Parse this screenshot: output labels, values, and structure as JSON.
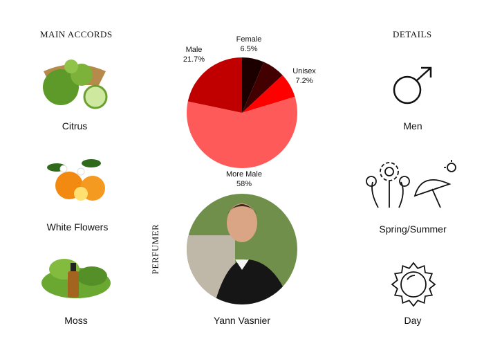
{
  "accords": {
    "title": "MAIN ACCORDS",
    "items": [
      {
        "label": "Citrus",
        "icon": "citrus-image"
      },
      {
        "label": "White Flowers",
        "icon": "white-flowers-image"
      },
      {
        "label": "Moss",
        "icon": "moss-image"
      }
    ]
  },
  "details": {
    "title": "DETAILS",
    "items": [
      {
        "label": "Men",
        "icon": "male-symbol-icon"
      },
      {
        "label": "Spring/Summer",
        "icon": "spring-summer-icon"
      },
      {
        "label": "Day",
        "icon": "sun-icon"
      }
    ]
  },
  "perfumer": {
    "title": "PERFUMER",
    "name": "Yann Vasnier"
  },
  "chart_data": {
    "type": "pie",
    "slices": [
      {
        "label": "Female",
        "value_text": "6.5%",
        "value": 6.5,
        "color": "#1c0000"
      },
      {
        "label": "",
        "value_text": "",
        "value": 6.6,
        "color": "#420000"
      },
      {
        "label": "Unisex",
        "value_text": "7.2%",
        "value": 7.2,
        "color": "#ff0000"
      },
      {
        "label": "More Male",
        "value_text": "58%",
        "value": 58,
        "color": "#ff5a5a"
      },
      {
        "label": "Male",
        "value_text": "21.7%",
        "value": 21.7,
        "color": "#c00000"
      }
    ]
  }
}
